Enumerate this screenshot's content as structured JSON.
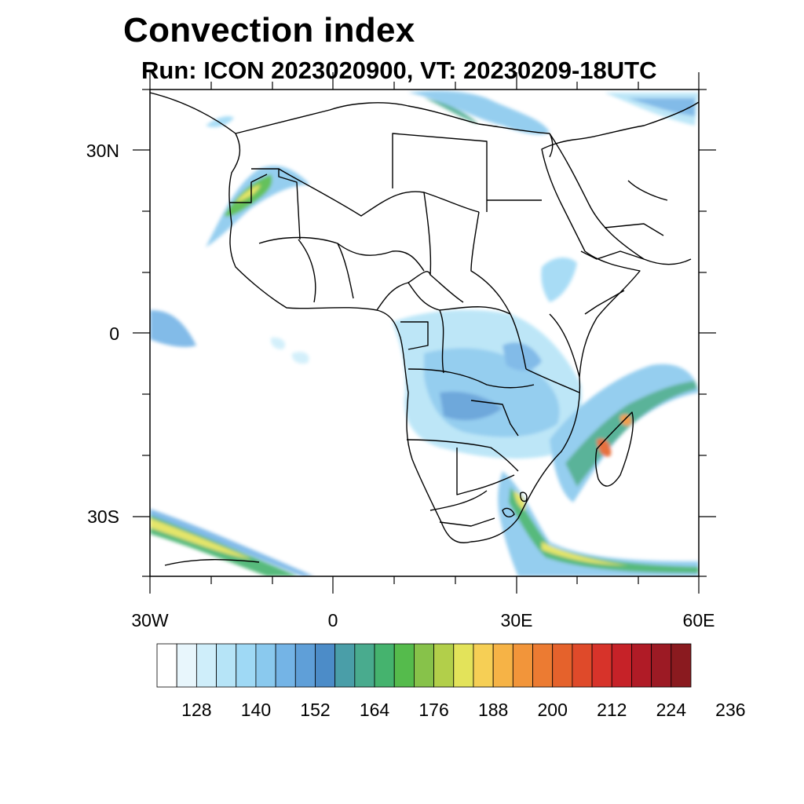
{
  "title": "Convection index",
  "subtitle": "Run: ICON 2023020900,  VT: 20230209-18UTC",
  "map": {
    "lon_range": [
      -30,
      60
    ],
    "lat_range": [
      -40,
      40
    ],
    "x_ticks": [
      "30W",
      "0",
      "30E",
      "60E"
    ],
    "y_ticks": [
      "30N",
      "0",
      "30S"
    ]
  },
  "colorbar": {
    "colors": [
      "#ffffff",
      "#e8f6fc",
      "#cfeefa",
      "#b6e4f7",
      "#9fd9f5",
      "#8ac9ee",
      "#74b4e6",
      "#5f9fd8",
      "#4c8cc8",
      "#4a9ea8",
      "#49ab8e",
      "#45b36e",
      "#55bb4c",
      "#87c24a",
      "#b2cf4a",
      "#e3e35a",
      "#f6cf55",
      "#f6b346",
      "#f2953a",
      "#ec7b32",
      "#e5622c",
      "#df4a2a",
      "#d7332a",
      "#c62228",
      "#b01b26",
      "#9c1a24",
      "#8a1a1f"
    ],
    "tick_labels": [
      "128",
      "140",
      "152",
      "164",
      "176",
      "188",
      "200",
      "212",
      "224",
      "236"
    ]
  }
}
